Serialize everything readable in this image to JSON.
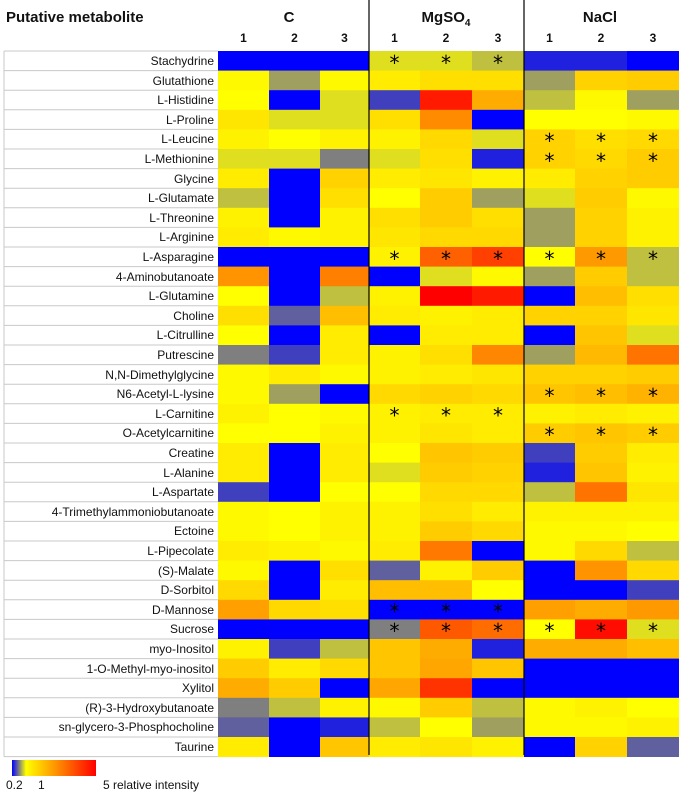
{
  "chart_data": {
    "type": "heatmap",
    "row_header": "Putative metabolite",
    "groups": [
      {
        "name": "C",
        "sub": "",
        "lanes": [
          "1",
          "2",
          "3"
        ]
      },
      {
        "name": "MgSO",
        "sub": "4",
        "lanes": [
          "1",
          "2",
          "3"
        ]
      },
      {
        "name": "NaCl",
        "sub": "",
        "lanes": [
          "1",
          "2",
          "3"
        ]
      }
    ],
    "rows": [
      "Stachydrine",
      "Glutathione",
      "L-Histidine",
      "L-Proline",
      "L-Leucine",
      "L-Methionine",
      "Glycine",
      "L-Glutamate",
      "L-Threonine",
      "L-Arginine",
      "L-Asparagine",
      "4-Aminobutanoate",
      "L-Glutamine",
      "Choline",
      "L-Citrulline",
      "Putrescine",
      "N,N-Dimethylglycine",
      "N6-Acetyl-L-lysine",
      "L-Carnitine",
      "O-Acetylcarnitine",
      "Creatine",
      "L-Alanine",
      "L-Aspartate",
      "4-Trimethylammoniobutanoate",
      "Ectoine",
      "L-Pipecolate",
      "(S)-Malate",
      "D-Sorbitol",
      "D-Mannose",
      "Sucrose",
      "myo-Inositol",
      "1-O-Methyl-myo-inositol",
      "Xylitol",
      "(R)-3-Hydroxybutanoate",
      "sn-glycero-3-Phosphocholine",
      "Taurine"
    ],
    "values": [
      [
        0.2,
        0.2,
        0.2,
        0.9,
        0.9,
        0.8,
        0.3,
        0.3,
        0.2
      ],
      [
        1.1,
        0.7,
        1.1,
        1.3,
        1.5,
        1.5,
        0.7,
        1.7,
        1.8
      ],
      [
        1.0,
        0.2,
        0.9,
        0.4,
        4.6,
        2.3,
        0.8,
        1.1,
        0.7
      ],
      [
        1.4,
        0.9,
        0.9,
        1.5,
        2.8,
        0.2,
        1.0,
        1.0,
        1.1
      ],
      [
        1.2,
        1.0,
        1.2,
        1.2,
        1.6,
        0.9,
        1.7,
        1.5,
        1.6
      ],
      [
        0.9,
        0.9,
        0.6,
        0.9,
        1.5,
        0.3,
        1.7,
        1.6,
        1.8
      ],
      [
        1.3,
        0.2,
        1.7,
        1.3,
        1.4,
        1.2,
        1.3,
        1.7,
        1.8
      ],
      [
        0.8,
        0.2,
        1.5,
        1.0,
        1.8,
        0.7,
        0.9,
        1.8,
        1.1
      ],
      [
        1.2,
        0.2,
        1.2,
        1.5,
        1.8,
        1.5,
        0.7,
        1.7,
        1.2
      ],
      [
        1.3,
        1.1,
        1.2,
        1.4,
        1.6,
        1.6,
        0.7,
        1.7,
        1.2
      ],
      [
        0.2,
        0.2,
        0.2,
        1.2,
        3.5,
        4.0,
        1.0,
        2.6,
        0.8
      ],
      [
        2.7,
        0.2,
        3.0,
        0.2,
        0.9,
        1.1,
        0.7,
        1.8,
        0.8
      ],
      [
        1.0,
        0.2,
        0.8,
        1.2,
        5.0,
        4.6,
        0.2,
        2.0,
        1.5
      ],
      [
        1.5,
        0.5,
        2.0,
        1.3,
        1.2,
        1.3,
        1.7,
        1.7,
        1.4
      ],
      [
        1.0,
        0.2,
        1.3,
        0.2,
        1.3,
        1.3,
        0.2,
        1.9,
        0.9
      ],
      [
        0.6,
        0.4,
        1.3,
        1.2,
        1.5,
        2.9,
        0.7,
        2.1,
        3.2
      ],
      [
        1.1,
        1.3,
        1.1,
        1.2,
        1.3,
        1.4,
        1.7,
        1.7,
        1.8
      ],
      [
        1.1,
        0.7,
        0.2,
        1.6,
        1.7,
        1.6,
        1.9,
        2.0,
        2.2
      ],
      [
        1.2,
        1.0,
        1.1,
        1.2,
        1.3,
        1.3,
        1.2,
        1.3,
        1.2
      ],
      [
        1.0,
        1.0,
        1.2,
        1.2,
        1.4,
        1.3,
        1.8,
        1.9,
        1.8
      ],
      [
        1.3,
        0.2,
        1.3,
        1.0,
        1.9,
        1.8,
        0.4,
        1.8,
        1.3
      ],
      [
        1.3,
        0.2,
        1.3,
        0.9,
        1.8,
        1.7,
        0.3,
        1.9,
        1.2
      ],
      [
        0.4,
        0.2,
        1.0,
        1.0,
        1.6,
        1.6,
        0.8,
        3.2,
        1.4
      ],
      [
        1.1,
        1.0,
        1.2,
        1.2,
        1.5,
        1.3,
        1.2,
        1.2,
        1.2
      ],
      [
        1.1,
        1.0,
        1.2,
        1.2,
        1.8,
        1.6,
        1.1,
        1.1,
        1.0
      ],
      [
        1.3,
        1.2,
        1.1,
        1.3,
        3.1,
        0.2,
        1.1,
        1.6,
        0.8
      ],
      [
        1.1,
        0.2,
        1.5,
        0.5,
        1.2,
        1.8,
        0.2,
        2.7,
        1.6
      ],
      [
        1.6,
        0.2,
        1.3,
        2.0,
        2.0,
        1.0,
        0.2,
        0.2,
        0.4
      ],
      [
        2.5,
        1.6,
        1.5,
        0.2,
        0.2,
        0.2,
        2.5,
        2.3,
        2.6
      ],
      [
        0.2,
        0.2,
        0.2,
        0.6,
        3.6,
        3.3,
        1.0,
        4.8,
        0.9
      ],
      [
        1.2,
        0.4,
        0.8,
        1.9,
        2.3,
        0.3,
        2.3,
        2.3,
        2.0
      ],
      [
        1.8,
        1.3,
        1.6,
        1.9,
        2.4,
        1.9,
        0.2,
        0.2,
        0.2
      ],
      [
        2.3,
        1.8,
        0.2,
        2.4,
        4.2,
        0.2,
        0.2,
        0.2,
        0.2
      ],
      [
        0.6,
        0.8,
        1.2,
        1.1,
        1.8,
        0.8,
        1.1,
        1.2,
        1.0
      ],
      [
        0.5,
        0.2,
        0.3,
        0.8,
        1.0,
        0.7,
        1.1,
        1.1,
        1.2
      ],
      [
        1.3,
        0.2,
        1.9,
        1.3,
        1.4,
        1.2,
        0.2,
        1.7,
        0.5
      ]
    ],
    "significant": [
      [
        0,
        3
      ],
      [
        0,
        4
      ],
      [
        0,
        5
      ],
      [
        4,
        6
      ],
      [
        4,
        7
      ],
      [
        4,
        8
      ],
      [
        5,
        6
      ],
      [
        5,
        7
      ],
      [
        5,
        8
      ],
      [
        10,
        3
      ],
      [
        10,
        4
      ],
      [
        10,
        5
      ],
      [
        10,
        6
      ],
      [
        10,
        7
      ],
      [
        10,
        8
      ],
      [
        17,
        6
      ],
      [
        17,
        7
      ],
      [
        17,
        8
      ],
      [
        18,
        3
      ],
      [
        18,
        4
      ],
      [
        18,
        5
      ],
      [
        19,
        6
      ],
      [
        19,
        7
      ],
      [
        19,
        8
      ],
      [
        28,
        3
      ],
      [
        28,
        4
      ],
      [
        28,
        5
      ],
      [
        29,
        3
      ],
      [
        29,
        4
      ],
      [
        29,
        5
      ],
      [
        29,
        6
      ],
      [
        29,
        7
      ],
      [
        29,
        8
      ]
    ],
    "significance_marker": "*",
    "colorscale": {
      "min": 0.2,
      "mid": 1,
      "max": 5,
      "colors": [
        "#0000ff",
        "#ffff00",
        "#ff0000"
      ],
      "label_min": "0.2",
      "label_mid": "1",
      "label_max": "5 relative intensity"
    }
  }
}
